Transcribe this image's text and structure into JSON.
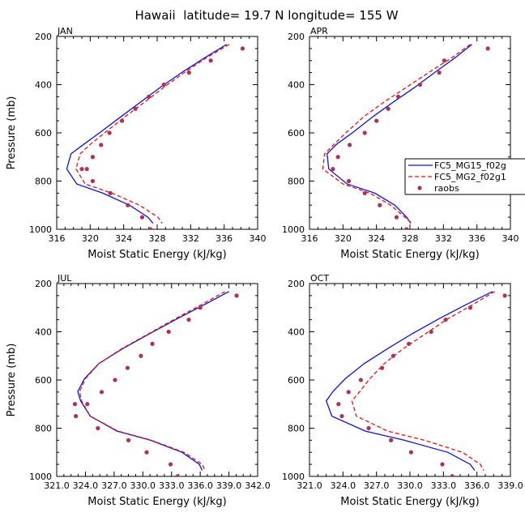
{
  "figure_title": "Hawaii  latitude= 19.7 N longitude= 155 W",
  "legend": {
    "entries": [
      {
        "label": "FC5_MG15_f02g",
        "style": "solid",
        "color": "#1010e0"
      },
      {
        "label": "FC5_MG2_f02g1",
        "style": "dashed",
        "color": "#ee1111"
      },
      {
        "label": "raobs",
        "style": "dot",
        "color": "#b0305a"
      }
    ]
  },
  "colors": {
    "solid": "#1010e0",
    "dashed": "#ee1111",
    "dots": "#b0305a"
  },
  "chart_data": [
    {
      "type": "line",
      "title": "JAN",
      "xlabel": "Moist Static Energy (kJ/kg)",
      "ylabel": "Pressure (mb)",
      "xlim": [
        316,
        340
      ],
      "ylim": [
        1000,
        200
      ],
      "xticks": [
        316,
        320,
        324,
        328,
        332,
        336,
        340
      ],
      "xtick_labels": [
        "316",
        "320",
        "324",
        "328",
        "332",
        "336",
        "340"
      ],
      "yticks": [
        200,
        400,
        600,
        800,
        1000
      ],
      "ytick_labels": [
        "200",
        "400",
        "600",
        "800",
        "1000"
      ],
      "series": [
        {
          "name": "FC5_MG15_f02g",
          "kind": "solid",
          "x": [
            336.3,
            333.7,
            331.1,
            328.5,
            326.1,
            323.7,
            321.3,
            319.2,
            317.7,
            317.2,
            318.4,
            321.5,
            324.7,
            326.9,
            327.5
          ],
          "y": [
            233,
            288,
            346,
            408,
            470,
            532,
            595,
            648,
            687,
            750,
            812,
            850,
            900,
            950,
            975
          ]
        },
        {
          "name": "FC5_MG2_f02g1",
          "kind": "dashed",
          "x": [
            336.6,
            333.9,
            331.4,
            328.9,
            326.6,
            324.2,
            321.9,
            320.0,
            318.8,
            318.3,
            319.4,
            322.6,
            325.9,
            328.1,
            328.6
          ],
          "y": [
            233,
            288,
            346,
            408,
            470,
            532,
            595,
            648,
            687,
            750,
            812,
            850,
            900,
            950,
            975
          ]
        },
        {
          "name": "raobs",
          "kind": "dots",
          "x": [
            338.2,
            334.4,
            331.8,
            328.8,
            327.0,
            325.4,
            323.8,
            322.3,
            321.3,
            320.3,
            319.6,
            319.0,
            320.3,
            322.4,
            324.5,
            326.2,
            327.2
          ],
          "y": [
            250,
            300,
            350,
            400,
            450,
            500,
            550,
            600,
            650,
            700,
            750,
            750,
            800,
            850,
            900,
            950,
            1000
          ]
        }
      ]
    },
    {
      "type": "line",
      "title": "APR",
      "xlabel": "Moist Static Energy (kJ/kg)",
      "ylabel": "Pressure (mb)",
      "xlim": [
        316,
        340
      ],
      "ylim": [
        1000,
        200
      ],
      "xticks": [
        316,
        320,
        324,
        328,
        332,
        336,
        340
      ],
      "xtick_labels": [
        "316",
        "320",
        "324",
        "328",
        "332",
        "336",
        "340"
      ],
      "yticks": [
        200,
        400,
        600,
        800,
        1000
      ],
      "ytick_labels": [
        "200",
        "400",
        "600",
        "800",
        "1000"
      ],
      "series": [
        {
          "name": "FC5_MG15_f02g",
          "kind": "solid",
          "x": [
            335.4,
            333.4,
            331.1,
            328.7,
            326.1,
            323.6,
            321.3,
            319.2,
            318.1,
            318.3,
            320.5,
            323.8,
            326.2,
            327.6,
            328.1
          ],
          "y": [
            233,
            288,
            346,
            408,
            470,
            532,
            595,
            648,
            687,
            750,
            812,
            850,
            900,
            950,
            975
          ]
        },
        {
          "name": "FC5_MG2_f02g1",
          "kind": "dashed",
          "x": [
            335.2,
            333.0,
            330.4,
            327.7,
            325.0,
            322.5,
            320.5,
            318.9,
            317.8,
            317.6,
            320.0,
            323.2,
            325.7,
            327.4,
            328.2
          ],
          "y": [
            233,
            288,
            346,
            408,
            470,
            532,
            595,
            648,
            687,
            750,
            812,
            850,
            900,
            950,
            975
          ]
        },
        {
          "name": "raobs",
          "kind": "dots",
          "x": [
            337.3,
            332.1,
            331.5,
            329.2,
            326.6,
            325.4,
            324.0,
            322.6,
            320.8,
            319.4,
            318.8,
            320.7,
            322.6,
            324.4,
            326.4,
            327.6
          ],
          "y": [
            250,
            300,
            350,
            400,
            450,
            500,
            550,
            600,
            650,
            700,
            750,
            800,
            850,
            900,
            950,
            1000
          ]
        }
      ]
    },
    {
      "type": "line",
      "title": "JUL",
      "xlabel": "Moist Static Energy (kJ/kg)",
      "ylabel": "Pressure (mb)",
      "xlim": [
        321,
        342
      ],
      "ylim": [
        1000,
        200
      ],
      "xticks": [
        321,
        324,
        327,
        330,
        333,
        336,
        339,
        342
      ],
      "xtick_labels": [
        "321.0",
        "324.0",
        "327.0",
        "330.0",
        "333.0",
        "336.0",
        "339.0",
        "342.0"
      ],
      "yticks": [
        200,
        400,
        600,
        800,
        1000
      ],
      "ytick_labels": [
        "200",
        "400",
        "600",
        "800",
        "1000"
      ],
      "series": [
        {
          "name": "FC5_MG15_f02g",
          "kind": "solid",
          "x": [
            339.0,
            336.4,
            333.6,
            330.7,
            327.9,
            325.4,
            323.9,
            323.2,
            323.5,
            324.5,
            327.3,
            330.8,
            334.1,
            335.9,
            336.2
          ],
          "y": [
            233,
            288,
            346,
            408,
            470,
            532,
            595,
            648,
            687,
            750,
            812,
            850,
            900,
            950,
            975
          ]
        },
        {
          "name": "FC5_MG2_f02g1",
          "kind": "dashed",
          "x": [
            338.6,
            336.1,
            333.4,
            330.6,
            327.8,
            325.4,
            324.0,
            323.4,
            323.6,
            324.5,
            327.4,
            330.9,
            334.3,
            336.2,
            336.5
          ],
          "y": [
            233,
            288,
            346,
            408,
            470,
            532,
            595,
            648,
            687,
            750,
            812,
            850,
            900,
            950,
            975
          ]
        },
        {
          "name": "raobs",
          "kind": "dots",
          "x": [
            339.8,
            336.0,
            334.8,
            332.7,
            331.0,
            329.8,
            328.4,
            327.1,
            325.7,
            324.2,
            322.9,
            323.0,
            325.3,
            328.5,
            330.4,
            332.9,
            333.6
          ],
          "y": [
            250,
            300,
            350,
            400,
            450,
            500,
            550,
            600,
            650,
            700,
            700,
            750,
            800,
            850,
            900,
            950,
            1000
          ]
        }
      ]
    },
    {
      "type": "line",
      "title": "OCT",
      "xlabel": "Moist Static Energy (kJ/kg)",
      "ylabel": "Pressure (mb)",
      "xlim": [
        321,
        339
      ],
      "ylim": [
        1000,
        200
      ],
      "xticks": [
        321,
        324,
        327,
        330,
        333,
        336,
        339
      ],
      "xtick_labels": [
        "321.0",
        "324.0",
        "327.0",
        "330.0",
        "333.0",
        "336.0",
        "339.0"
      ],
      "yticks": [
        200,
        400,
        600,
        800,
        1000
      ],
      "ytick_labels": [
        "200",
        "400",
        "600",
        "800",
        "1000"
      ],
      "series": [
        {
          "name": "FC5_MG15_f02g",
          "kind": "solid",
          "x": [
            337.4,
            335.0,
            332.6,
            330.2,
            328.0,
            325.9,
            324.2,
            323.1,
            322.5,
            323.0,
            326.0,
            329.5,
            333.4,
            335.4,
            335.8
          ],
          "y": [
            233,
            288,
            346,
            408,
            470,
            532,
            595,
            648,
            687,
            750,
            812,
            850,
            900,
            950,
            975
          ]
        },
        {
          "name": "FC5_MG2_f02g1",
          "kind": "dashed",
          "x": [
            337.6,
            335.6,
            333.4,
            331.4,
            329.4,
            327.7,
            326.4,
            325.5,
            324.8,
            325.2,
            328.0,
            331.3,
            334.7,
            336.3,
            336.6
          ],
          "y": [
            233,
            288,
            346,
            408,
            470,
            532,
            595,
            648,
            687,
            750,
            812,
            850,
            900,
            950,
            975
          ]
        },
        {
          "name": "raobs",
          "kind": "dots",
          "x": [
            338.5,
            335.4,
            333.2,
            331.9,
            329.9,
            328.5,
            327.5,
            325.6,
            324.5,
            323.6,
            323.9,
            326.3,
            328.3,
            330.1,
            332.9,
            333.8
          ],
          "y": [
            250,
            300,
            350,
            400,
            450,
            500,
            550,
            600,
            650,
            700,
            750,
            800,
            850,
            900,
            950,
            1000
          ]
        }
      ]
    }
  ]
}
